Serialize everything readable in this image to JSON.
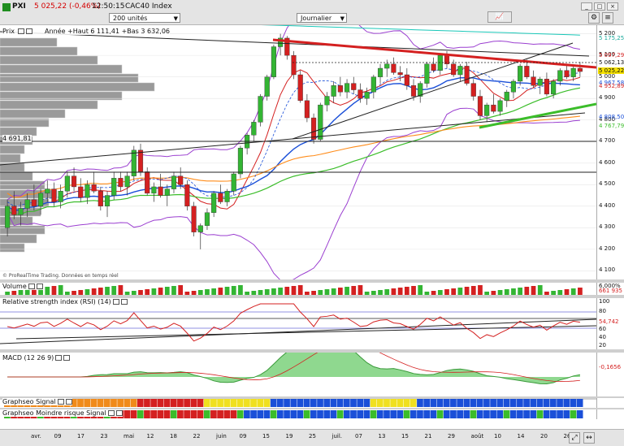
{
  "header": {
    "symbol": "PXI",
    "quote": "5 025,22 (-0,46%)",
    "time": "12:50:15",
    "description": "CAC40 Index",
    "units_select": "200 unités",
    "period_select": "Journalier"
  },
  "price_panel": {
    "label": "Prix",
    "ohlc_text": "Année +Haut 6 111,41 +Bas 3 632,06",
    "footnote": "© ProRealTime Trading. Données en temps réel",
    "level_label": "4 691,81",
    "tags": [
      {
        "text": "5 175,25",
        "color": "#19a89a"
      },
      {
        "text": "5 097,29",
        "color": "#d42020"
      },
      {
        "text": "5 062,13",
        "color": "#111111"
      },
      {
        "text": "5 025,22",
        "color": "#e8d000"
      },
      {
        "text": "4 967,58",
        "color": "#1a4fd8"
      },
      {
        "text": "4 952,89",
        "color": "#d42020"
      },
      {
        "text": "4 808,50",
        "color": "#1a4fd8"
      },
      {
        "text": "4 767,79",
        "color": "#3bbd2a"
      }
    ]
  },
  "volume_panel": {
    "label": "Volume",
    "tag": "661 935",
    "top_tick": "6,000%"
  },
  "rsi_panel": {
    "label": "Relative strength index (RSI) (14)",
    "tag": "54,742",
    "ticks": [
      "100",
      "80",
      "60",
      "40",
      "20"
    ]
  },
  "macd_panel": {
    "label": "MACD (12 26 9)",
    "ticks": [
      "-0,1656"
    ]
  },
  "signal_panel": {
    "label": "Graphseo Signal"
  },
  "risk_panel": {
    "label": "Graphseo Moindre risque Signal"
  },
  "colors": {
    "up": "#33b533",
    "down": "#d42020",
    "bg": "#ffffff"
  },
  "chart_data": {
    "type": "candlestick",
    "title": "",
    "y_ticks": [
      5200,
      5100,
      5000,
      4900,
      4800,
      4700,
      4600,
      4500,
      4400,
      4300,
      4200,
      4100
    ],
    "ylim": [
      4060,
      5240
    ],
    "x_labels": [
      "avr.",
      "09",
      "17",
      "23",
      "mai",
      "12",
      "18",
      "22",
      "juin",
      "09",
      "15",
      "19",
      "25",
      "juil.",
      "07",
      "13",
      "15",
      "21",
      "29",
      "août",
      "10",
      "14",
      "20",
      "26"
    ],
    "candles": [
      [
        4300,
        4430,
        4260,
        4400
      ],
      [
        4400,
        4470,
        4340,
        4360
      ],
      [
        4360,
        4420,
        4310,
        4390
      ],
      [
        4390,
        4460,
        4350,
        4430
      ],
      [
        4430,
        4500,
        4380,
        4400
      ],
      [
        4400,
        4480,
        4360,
        4460
      ],
      [
        4460,
        4520,
        4420,
        4480
      ],
      [
        4480,
        4510,
        4400,
        4420
      ],
      [
        4420,
        4500,
        4390,
        4470
      ],
      [
        4470,
        4560,
        4440,
        4540
      ],
      [
        4540,
        4580,
        4470,
        4490
      ],
      [
        4490,
        4530,
        4420,
        4440
      ],
      [
        4440,
        4520,
        4410,
        4500
      ],
      [
        4500,
        4560,
        4460,
        4470
      ],
      [
        4470,
        4490,
        4380,
        4400
      ],
      [
        4400,
        4470,
        4350,
        4450
      ],
      [
        4450,
        4560,
        4430,
        4530
      ],
      [
        4530,
        4560,
        4470,
        4490
      ],
      [
        4490,
        4560,
        4450,
        4540
      ],
      [
        4540,
        4680,
        4520,
        4660
      ],
      [
        4660,
        4690,
        4540,
        4560
      ],
      [
        4560,
        4580,
        4450,
        4460
      ],
      [
        4460,
        4510,
        4420,
        4490
      ],
      [
        4490,
        4550,
        4440,
        4450
      ],
      [
        4450,
        4500,
        4400,
        4480
      ],
      [
        4480,
        4560,
        4460,
        4540
      ],
      [
        4540,
        4580,
        4480,
        4500
      ],
      [
        4500,
        4520,
        4380,
        4400
      ],
      [
        4400,
        4420,
        4260,
        4280
      ],
      [
        4280,
        4320,
        4200,
        4310
      ],
      [
        4310,
        4390,
        4290,
        4370
      ],
      [
        4370,
        4470,
        4350,
        4460
      ],
      [
        4460,
        4500,
        4410,
        4420
      ],
      [
        4420,
        4480,
        4400,
        4470
      ],
      [
        4470,
        4560,
        4450,
        4550
      ],
      [
        4550,
        4680,
        4530,
        4670
      ],
      [
        4670,
        4740,
        4640,
        4730
      ],
      [
        4730,
        4800,
        4700,
        4790
      ],
      [
        4790,
        4920,
        4770,
        4910
      ],
      [
        4910,
        5010,
        4890,
        5000
      ],
      [
        5000,
        5150,
        4990,
        5140
      ],
      [
        5140,
        5200,
        5100,
        5180
      ],
      [
        5180,
        5190,
        5080,
        5100
      ],
      [
        5100,
        5120,
        4990,
        5010
      ],
      [
        5010,
        5030,
        4880,
        4890
      ],
      [
        4890,
        4920,
        4790,
        4810
      ],
      [
        4810,
        4830,
        4690,
        4710
      ],
      [
        4710,
        4880,
        4700,
        4870
      ],
      [
        4870,
        4930,
        4840,
        4910
      ],
      [
        4910,
        4980,
        4880,
        4960
      ],
      [
        4960,
        5000,
        4910,
        4930
      ],
      [
        4930,
        4990,
        4900,
        4970
      ],
      [
        4970,
        5000,
        4920,
        4940
      ],
      [
        4940,
        4970,
        4880,
        4900
      ],
      [
        4900,
        4950,
        4870,
        4930
      ],
      [
        4930,
        5010,
        4900,
        5000
      ],
      [
        5000,
        5060,
        4970,
        5040
      ],
      [
        5040,
        5080,
        5000,
        5060
      ],
      [
        5060,
        5090,
        5010,
        5020
      ],
      [
        5020,
        5050,
        4980,
        5010
      ],
      [
        5010,
        5040,
        4940,
        4960
      ],
      [
        4960,
        4990,
        4890,
        4910
      ],
      [
        4910,
        4980,
        4880,
        4970
      ],
      [
        4970,
        5070,
        4950,
        5060
      ],
      [
        5060,
        5090,
        5020,
        5030
      ],
      [
        5030,
        5110,
        5010,
        5100
      ],
      [
        5100,
        5120,
        5040,
        5060
      ],
      [
        5060,
        5080,
        5000,
        5010
      ],
      [
        5010,
        5060,
        4980,
        5050
      ],
      [
        5050,
        5070,
        4960,
        4970
      ],
      [
        4970,
        4990,
        4890,
        4910
      ],
      [
        4910,
        4940,
        4800,
        4820
      ],
      [
        4820,
        4880,
        4790,
        4870
      ],
      [
        4870,
        4920,
        4830,
        4840
      ],
      [
        4840,
        4900,
        4820,
        4890
      ],
      [
        4890,
        4940,
        4860,
        4930
      ],
      [
        4930,
        4990,
        4900,
        4980
      ],
      [
        4980,
        5060,
        4960,
        5050
      ],
      [
        5050,
        5080,
        4990,
        5000
      ],
      [
        5000,
        5030,
        4950,
        4960
      ],
      [
        4960,
        5000,
        4920,
        4990
      ],
      [
        4990,
        5020,
        4910,
        4920
      ],
      [
        4920,
        4990,
        4900,
        4980
      ],
      [
        4980,
        5040,
        4960,
        5030
      ],
      [
        5030,
        5060,
        4990,
        5000
      ],
      [
        5000,
        5050,
        4980,
        5040
      ],
      [
        5040,
        5070,
        5000,
        5025
      ]
    ]
  }
}
